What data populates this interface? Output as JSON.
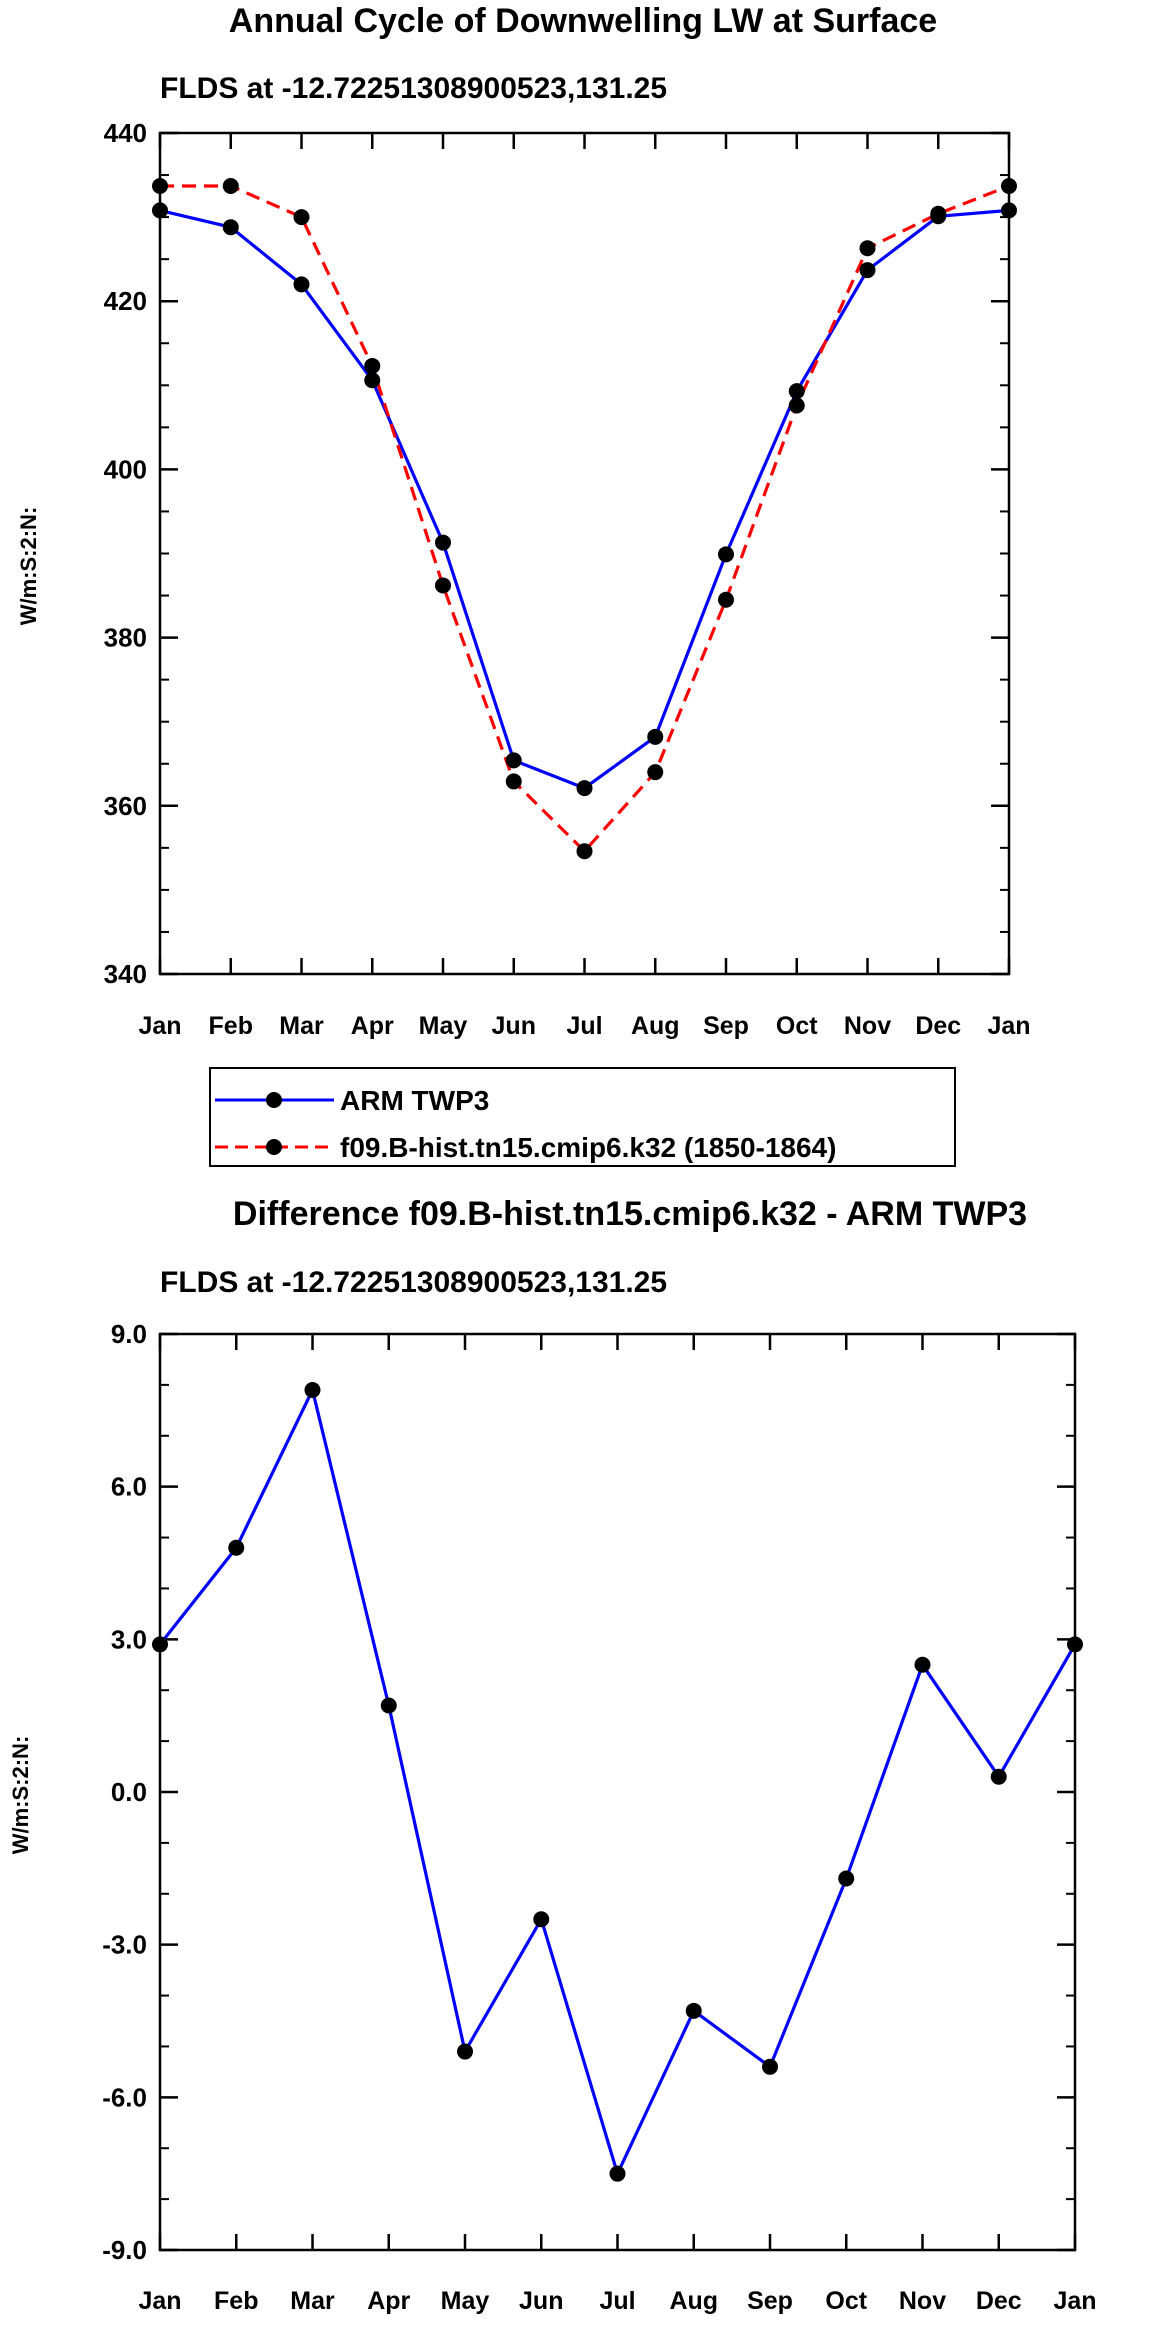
{
  "chart_data": [
    {
      "type": "line",
      "title": "Annual Cycle of Downwelling LW at Surface",
      "subtitle": "FLDS at -12.72251308900523,131.25",
      "xlabel": "",
      "ylabel": "W/m:S:2:N:",
      "categories": [
        "Jan",
        "Feb",
        "Mar",
        "Apr",
        "May",
        "Jun",
        "Jul",
        "Aug",
        "Sep",
        "Oct",
        "Nov",
        "Dec",
        "Jan"
      ],
      "ylim": [
        340,
        440
      ],
      "yticks": [
        "340",
        "360",
        "380",
        "400",
        "420",
        "440"
      ],
      "series": [
        {
          "name": "ARM TWP3",
          "color": "#0000ff",
          "dash": "solid",
          "values": [
            430.8,
            428.8,
            422.0,
            410.6,
            391.3,
            365.4,
            362.1,
            368.2,
            389.9,
            409.3,
            423.7,
            430.1,
            430.8
          ]
        },
        {
          "name": "f09.B-hist.tn15.cmip6.k32 (1850-1864)",
          "color": "#ff0000",
          "dash": "dashed",
          "values": [
            433.7,
            433.7,
            430.0,
            412.3,
            386.2,
            362.9,
            354.6,
            364.0,
            384.5,
            407.6,
            426.3,
            430.4,
            433.7
          ]
        }
      ]
    },
    {
      "type": "line",
      "title": "Difference f09.B-hist.tn15.cmip6.k32 - ARM TWP3",
      "subtitle": "FLDS at -12.72251308900523,131.25",
      "xlabel": "",
      "ylabel": "W/m:S:2:N:",
      "categories": [
        "Jan",
        "Feb",
        "Mar",
        "Apr",
        "May",
        "Jun",
        "Jul",
        "Aug",
        "Sep",
        "Oct",
        "Nov",
        "Dec",
        "Jan"
      ],
      "ylim": [
        -9.0,
        9.0
      ],
      "yticks": [
        "-9.0",
        "-6.0",
        "-3.0",
        "0.0",
        "3.0",
        "6.0",
        "9.0"
      ],
      "series": [
        {
          "name": "Difference",
          "color": "#0000ff",
          "dash": "solid",
          "values": [
            2.9,
            4.8,
            7.9,
            1.7,
            -5.1,
            -2.5,
            -7.5,
            -4.3,
            -5.4,
            -1.7,
            2.5,
            0.3,
            2.9
          ]
        }
      ]
    }
  ]
}
